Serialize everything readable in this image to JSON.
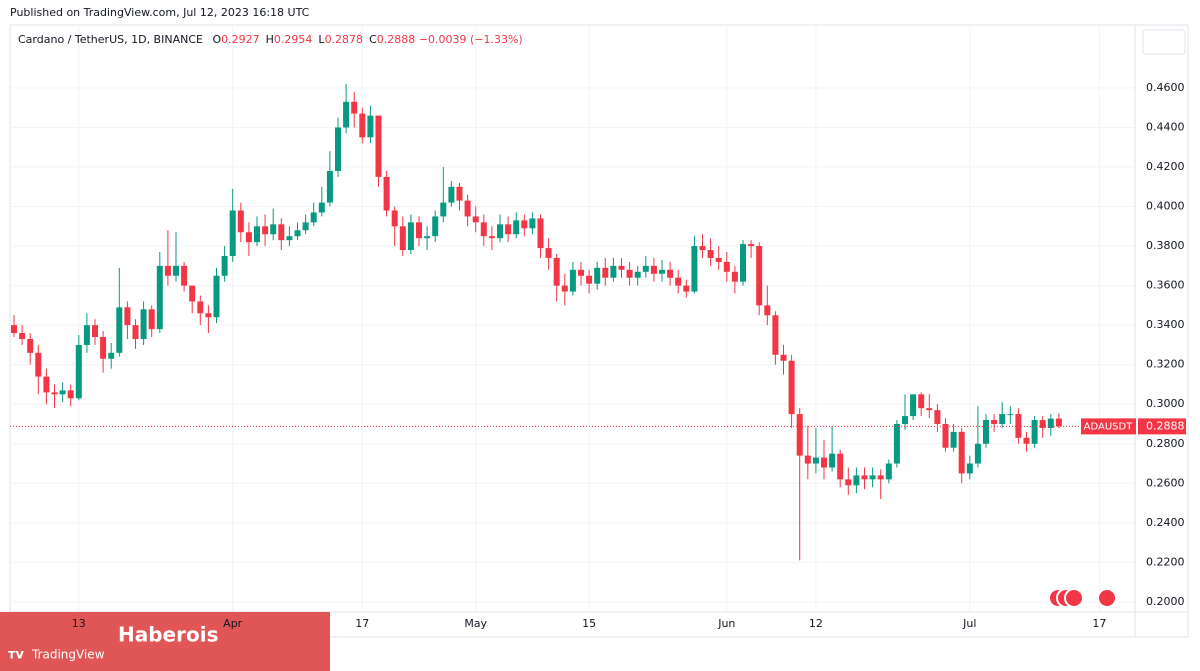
{
  "header": {
    "published": "Published on TradingView.com, Jul 12, 2023 16:18 UTC"
  },
  "legend": {
    "symbol": "Cardano / TetherUS, 1D, BINANCE",
    "fields": [
      {
        "key": "O",
        "value": "0.2927"
      },
      {
        "key": "H",
        "value": "0.2954"
      },
      {
        "key": "L",
        "value": "0.2878"
      },
      {
        "key": "C",
        "value": "0.2888"
      }
    ],
    "change": "−0.0039 (−1.33%)"
  },
  "watermark": {
    "brand": "Haberois",
    "logo": "TradingView"
  },
  "chart_data": {
    "type": "candlestick",
    "up_color": "#089981",
    "down_color": "#f23645",
    "grid": true,
    "last_price": {
      "label": "ADAUSDT",
      "value": 0.2888
    },
    "ylim": [
      0.1949,
      0.4802
    ],
    "yticks": [
      {
        "value": 0.2,
        "label": "0.2000"
      },
      {
        "value": 0.22,
        "label": "0.2200"
      },
      {
        "value": 0.24,
        "label": "0.2400"
      },
      {
        "value": 0.26,
        "label": "0.2600"
      },
      {
        "value": 0.28,
        "label": "0.2800"
      },
      {
        "value": 0.3,
        "label": "0.3000"
      },
      {
        "value": 0.32,
        "label": "0.3200"
      },
      {
        "value": 0.34,
        "label": "0.3400"
      },
      {
        "value": 0.36,
        "label": "0.3600"
      },
      {
        "value": 0.38,
        "label": "0.3800"
      },
      {
        "value": 0.4,
        "label": "0.4000"
      },
      {
        "value": 0.42,
        "label": "0.4200"
      },
      {
        "value": 0.44,
        "label": "0.4400"
      },
      {
        "value": 0.46,
        "label": "0.4600"
      }
    ],
    "categories": [
      null,
      null,
      null,
      null,
      null,
      null,
      null,
      null,
      "13",
      null,
      null,
      null,
      null,
      null,
      null,
      null,
      null,
      null,
      null,
      null,
      null,
      null,
      null,
      null,
      null,
      null,
      null,
      "Apr",
      null,
      null,
      null,
      null,
      null,
      null,
      null,
      null,
      null,
      null,
      null,
      null,
      null,
      null,
      null,
      "17",
      null,
      null,
      null,
      null,
      null,
      null,
      null,
      null,
      null,
      null,
      null,
      null,
      null,
      "May",
      null,
      null,
      null,
      null,
      null,
      null,
      null,
      null,
      null,
      null,
      null,
      null,
      null,
      "15",
      null,
      null,
      null,
      null,
      null,
      null,
      null,
      null,
      null,
      null,
      null,
      null,
      null,
      null,
      null,
      null,
      "Jun",
      null,
      null,
      null,
      null,
      null,
      null,
      null,
      null,
      null,
      null,
      "12",
      null,
      null,
      null,
      null,
      null,
      null,
      null,
      null,
      null,
      null,
      null,
      null,
      null,
      null,
      null,
      null,
      null,
      null,
      "Jul",
      null,
      null,
      null,
      null,
      null,
      null,
      null,
      null,
      null,
      null,
      null,
      null,
      null,
      null,
      null,
      "17"
    ],
    "open": [
      0.34,
      0.336,
      0.333,
      0.326,
      0.314,
      0.306,
      0.305,
      0.307,
      0.303,
      0.33,
      0.34,
      0.334,
      0.323,
      0.326,
      0.349,
      0.34,
      0.333,
      0.348,
      0.338,
      0.37,
      0.365,
      0.37,
      0.36,
      0.352,
      0.346,
      0.344,
      0.365,
      0.375,
      0.398,
      0.387,
      0.382,
      0.39,
      0.386,
      0.391,
      0.383,
      0.385,
      0.388,
      0.392,
      0.397,
      0.402,
      0.418,
      0.44,
      0.453,
      0.447,
      0.435,
      0.446,
      0.415,
      0.398,
      0.39,
      0.378,
      0.392,
      0.384,
      0.385,
      0.395,
      0.402,
      0.41,
      0.403,
      0.395,
      0.392,
      0.385,
      0.384,
      0.391,
      0.386,
      0.393,
      0.389,
      0.394,
      0.379,
      0.374,
      0.36,
      0.357,
      0.368,
      0.365,
      0.361,
      0.369,
      0.364,
      0.37,
      0.368,
      0.364,
      0.367,
      0.37,
      0.366,
      0.368,
      0.364,
      0.36,
      0.357,
      0.38,
      0.378,
      0.374,
      0.372,
      0.367,
      0.362,
      0.381,
      0.38,
      0.35,
      0.345,
      0.325,
      0.322,
      0.295,
      0.274,
      0.27,
      0.273,
      0.268,
      0.275,
      0.262,
      0.259,
      0.264,
      0.262,
      0.264,
      0.262,
      0.27,
      0.29,
      0.294,
      0.305,
      0.298,
      0.297,
      0.29,
      0.278,
      0.286,
      0.265,
      0.27,
      0.28,
      0.292,
      0.29,
      0.295,
      0.295,
      0.283,
      0.28,
      0.292,
      0.288,
      0.2927,
      null,
      null,
      null,
      null,
      null
    ],
    "high": [
      0.345,
      0.34,
      0.336,
      0.33,
      0.318,
      0.31,
      0.311,
      0.31,
      0.335,
      0.346,
      0.343,
      0.337,
      0.331,
      0.369,
      0.352,
      0.343,
      0.352,
      0.35,
      0.377,
      0.388,
      0.387,
      0.372,
      0.36,
      0.355,
      0.35,
      0.369,
      0.38,
      0.409,
      0.402,
      0.392,
      0.395,
      0.396,
      0.399,
      0.394,
      0.39,
      0.392,
      0.396,
      0.402,
      0.41,
      0.428,
      0.445,
      0.462,
      0.458,
      0.45,
      0.451,
      0.446,
      0.418,
      0.4,
      0.395,
      0.396,
      0.395,
      0.39,
      0.398,
      0.42,
      0.413,
      0.412,
      0.406,
      0.4,
      0.396,
      0.39,
      0.396,
      0.395,
      0.397,
      0.396,
      0.397,
      0.396,
      0.384,
      0.376,
      0.366,
      0.372,
      0.372,
      0.368,
      0.372,
      0.374,
      0.374,
      0.374,
      0.372,
      0.37,
      0.375,
      0.374,
      0.373,
      0.372,
      0.368,
      0.363,
      0.385,
      0.386,
      0.384,
      0.38,
      0.377,
      0.37,
      0.383,
      0.383,
      0.382,
      0.36,
      0.347,
      0.33,
      0.325,
      0.298,
      0.289,
      0.288,
      0.282,
      0.289,
      0.277,
      0.268,
      0.268,
      0.268,
      0.268,
      0.267,
      0.272,
      0.292,
      0.305,
      0.305,
      0.306,
      0.305,
      0.3,
      0.293,
      0.29,
      0.288,
      0.274,
      0.299,
      0.295,
      0.295,
      0.301,
      0.299,
      0.298,
      0.286,
      0.294,
      0.294,
      0.295,
      0.2954,
      null,
      null,
      null,
      null,
      null
    ],
    "low": [
      0.334,
      0.33,
      0.32,
      0.305,
      0.3,
      0.298,
      0.301,
      0.299,
      0.302,
      0.326,
      0.33,
      0.316,
      0.318,
      0.324,
      0.333,
      0.328,
      0.33,
      0.334,
      0.336,
      0.36,
      0.362,
      0.357,
      0.346,
      0.34,
      0.336,
      0.341,
      0.362,
      0.372,
      0.382,
      0.375,
      0.38,
      0.38,
      0.383,
      0.378,
      0.38,
      0.383,
      0.386,
      0.39,
      0.395,
      0.4,
      0.415,
      0.437,
      0.44,
      0.432,
      0.432,
      0.41,
      0.395,
      0.38,
      0.375,
      0.376,
      0.38,
      0.378,
      0.382,
      0.392,
      0.4,
      0.398,
      0.39,
      0.387,
      0.38,
      0.378,
      0.382,
      0.382,
      0.384,
      0.385,
      0.386,
      0.374,
      0.368,
      0.352,
      0.35,
      0.355,
      0.36,
      0.356,
      0.358,
      0.36,
      0.362,
      0.364,
      0.36,
      0.36,
      0.364,
      0.362,
      0.362,
      0.36,
      0.356,
      0.354,
      0.356,
      0.374,
      0.37,
      0.368,
      0.362,
      0.356,
      0.36,
      0.374,
      0.345,
      0.34,
      0.32,
      0.315,
      0.288,
      0.221,
      0.262,
      0.265,
      0.262,
      0.266,
      0.258,
      0.254,
      0.255,
      0.257,
      0.258,
      0.252,
      0.26,
      0.268,
      0.287,
      0.292,
      0.294,
      0.293,
      0.286,
      0.276,
      0.276,
      0.26,
      0.262,
      0.268,
      0.278,
      0.286,
      0.288,
      0.29,
      0.28,
      0.276,
      0.278,
      0.283,
      0.284,
      0.2878,
      null,
      null,
      null,
      null,
      null
    ],
    "close": [
      0.336,
      0.333,
      0.326,
      0.314,
      0.306,
      0.305,
      0.307,
      0.303,
      0.33,
      0.34,
      0.334,
      0.323,
      0.326,
      0.349,
      0.34,
      0.333,
      0.348,
      0.338,
      0.37,
      0.365,
      0.37,
      0.36,
      0.352,
      0.346,
      0.344,
      0.365,
      0.375,
      0.398,
      0.387,
      0.382,
      0.39,
      0.386,
      0.391,
      0.383,
      0.385,
      0.388,
      0.392,
      0.397,
      0.402,
      0.418,
      0.44,
      0.453,
      0.447,
      0.435,
      0.446,
      0.415,
      0.398,
      0.39,
      0.378,
      0.392,
      0.384,
      0.385,
      0.395,
      0.402,
      0.41,
      0.403,
      0.395,
      0.392,
      0.385,
      0.384,
      0.391,
      0.386,
      0.393,
      0.389,
      0.394,
      0.379,
      0.374,
      0.36,
      0.357,
      0.368,
      0.365,
      0.361,
      0.369,
      0.364,
      0.37,
      0.368,
      0.364,
      0.367,
      0.37,
      0.366,
      0.368,
      0.364,
      0.36,
      0.357,
      0.38,
      0.378,
      0.374,
      0.372,
      0.367,
      0.362,
      0.381,
      0.38,
      0.35,
      0.345,
      0.325,
      0.322,
      0.295,
      0.274,
      0.27,
      0.273,
      0.268,
      0.275,
      0.262,
      0.259,
      0.264,
      0.262,
      0.264,
      0.262,
      0.27,
      0.29,
      0.294,
      0.305,
      0.298,
      0.297,
      0.29,
      0.278,
      0.286,
      0.265,
      0.27,
      0.28,
      0.292,
      0.29,
      0.295,
      0.295,
      0.283,
      0.28,
      0.292,
      0.288,
      0.2927,
      0.2888,
      null,
      null,
      null,
      null,
      null
    ]
  }
}
